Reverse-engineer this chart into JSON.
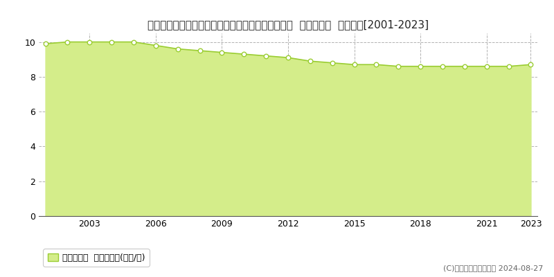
{
  "title": "宮崎県東諸県郡国富町大字木脇字早萩２９９番１外  基準地価格  地価推移[2001-2023]",
  "years": [
    2001,
    2002,
    2003,
    2004,
    2005,
    2006,
    2007,
    2008,
    2009,
    2010,
    2011,
    2012,
    2013,
    2014,
    2015,
    2016,
    2017,
    2018,
    2019,
    2020,
    2021,
    2022,
    2023
  ],
  "values": [
    9.9,
    10.0,
    10.0,
    10.0,
    10.0,
    9.8,
    9.6,
    9.5,
    9.4,
    9.3,
    9.2,
    9.1,
    8.9,
    8.8,
    8.7,
    8.7,
    8.6,
    8.6,
    8.6,
    8.6,
    8.6,
    8.6,
    8.7
  ],
  "line_color": "#9acd32",
  "fill_color": "#d4ed8a",
  "marker_facecolor": "#ffffff",
  "marker_edgecolor": "#9acd32",
  "bg_color": "#ffffff",
  "grid_color": "#aaaaaa",
  "ylim": [
    0,
    10.5
  ],
  "yticks": [
    0,
    2,
    4,
    6,
    8,
    10
  ],
  "xticks": [
    2003,
    2006,
    2009,
    2012,
    2015,
    2018,
    2021,
    2023
  ],
  "legend_label": "基準地価格  平均坪単価(万円/坪)",
  "copyright_text": "(C)土地価格ドットコム 2024-08-27",
  "title_fontsize": 11,
  "tick_fontsize": 9,
  "legend_fontsize": 9,
  "copyright_fontsize": 8
}
